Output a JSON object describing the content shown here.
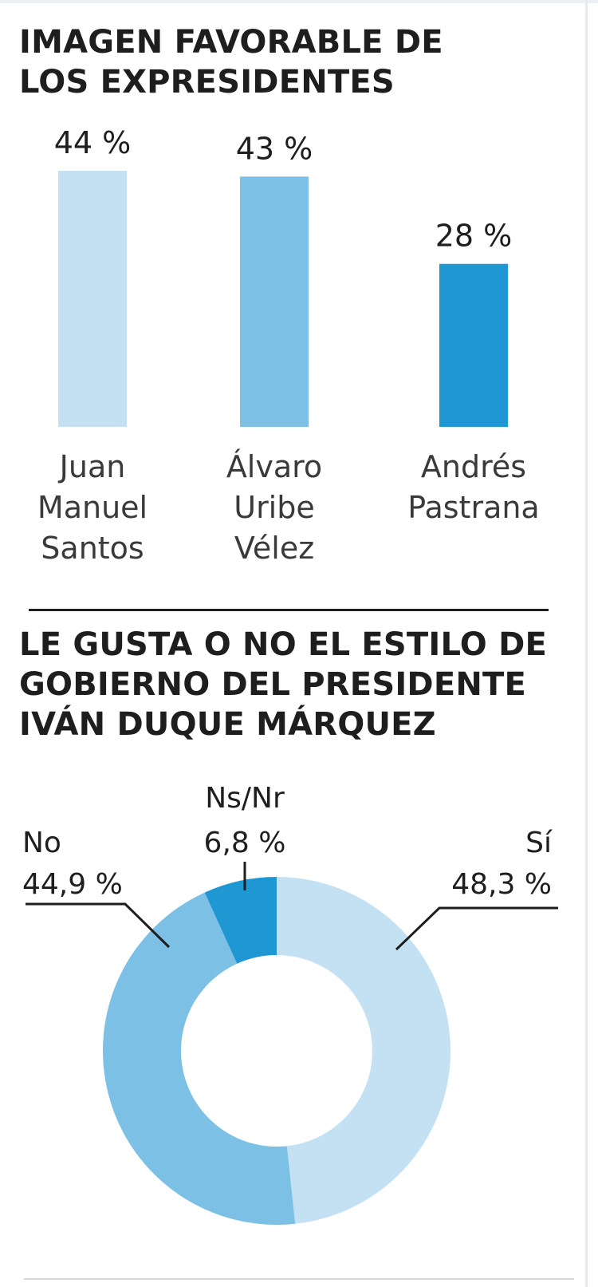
{
  "colors": {
    "light": "#c3e1f2",
    "medium": "#7cc0e6",
    "dark": "#1f97d3",
    "text": "#1e1e1e"
  },
  "chart_data": [
    {
      "type": "bar",
      "title": "IMAGEN FAVORABLE DE LOS EXPRESIDENTES",
      "title_lines": [
        "IMAGEN FAVORABLE DE",
        "LOS EXPRESIDENTES"
      ],
      "categories": [
        "Juan Manuel Santos",
        "Álvaro Uribe Vélez",
        "Andrés Pastrana"
      ],
      "category_lines": [
        [
          "Juan",
          "Manuel",
          "Santos"
        ],
        [
          "Álvaro",
          "Uribe",
          "Vélez"
        ],
        [
          "Andrés",
          "Pastrana"
        ]
      ],
      "values": [
        44,
        43,
        28
      ],
      "value_labels": [
        "44 %",
        "43 %",
        "28 %"
      ],
      "ylim": [
        0,
        44
      ],
      "grid": false,
      "bar_colors": [
        "#c3e1f2",
        "#7cc0e6",
        "#1f97d3"
      ]
    },
    {
      "type": "pie",
      "style": "donut",
      "title": "LE GUSTA O NO EL ESTILO DE GOBIERNO DEL PRESIDENTE IVÁN DUQUE MÁRQUEZ",
      "title_lines": [
        "LE GUSTA O NO EL ESTILO DE",
        "GOBIERNO DEL PRESIDENTE",
        "IVÁN DUQUE MÁRQUEZ"
      ],
      "slices": [
        {
          "label": "Sí",
          "value": 48.3,
          "value_label": "48,3 %",
          "color": "#c3e1f2"
        },
        {
          "label": "No",
          "value": 44.9,
          "value_label": "44,9 %",
          "color": "#7cc0e6"
        },
        {
          "label": "Ns/Nr",
          "value": 6.8,
          "value_label": "6,8 %",
          "color": "#1f97d3"
        }
      ]
    }
  ]
}
